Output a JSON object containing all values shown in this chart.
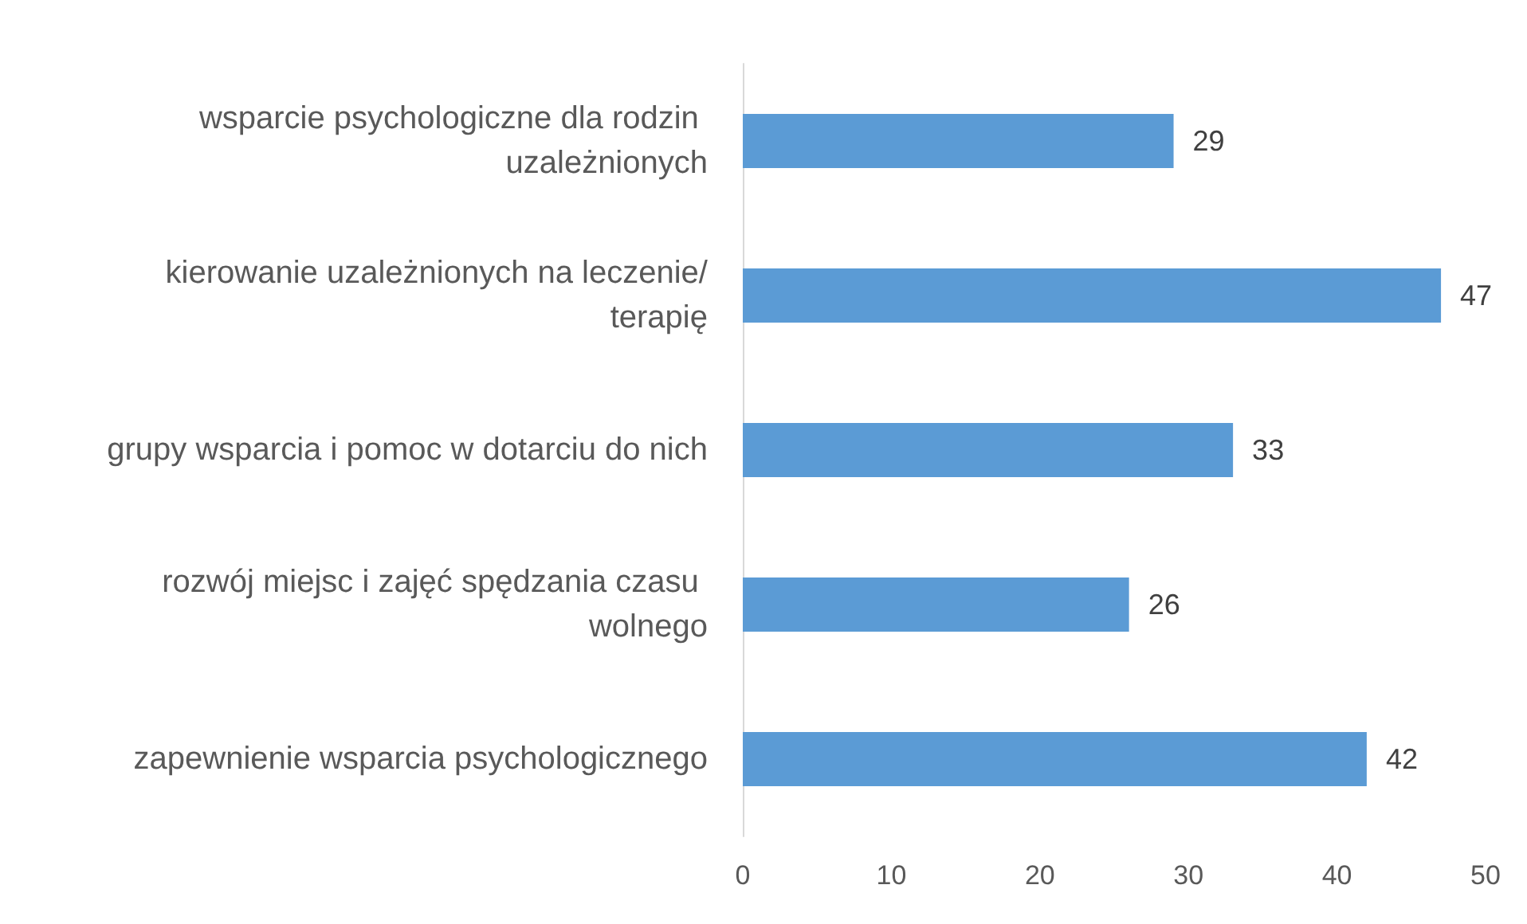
{
  "chart_data": {
    "type": "bar",
    "orientation": "horizontal",
    "categories": [
      "wsparcie psychologiczne dla rodzin uzależnionych",
      "kierowanie uzależnionych na leczenie/terapię",
      "grupy wsparcia i pomoc w dotarciu do nich",
      "rozwój miejsc i zajęć spędzania czasu wolnego",
      "zapewnienie wsparcia psychologicznego"
    ],
    "values": [
      29,
      47,
      33,
      26,
      42
    ],
    "color": "#5b9bd5",
    "xlim": [
      0,
      50
    ],
    "xticks": [
      0,
      10,
      20,
      30,
      40,
      50
    ],
    "data_labels": true,
    "grid": false
  }
}
